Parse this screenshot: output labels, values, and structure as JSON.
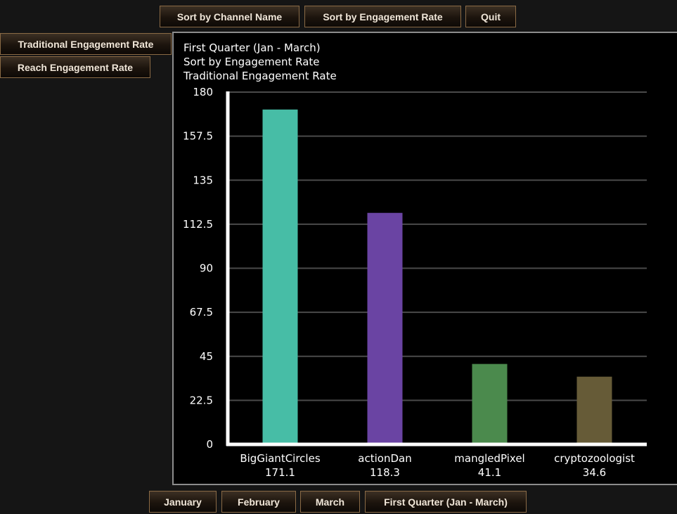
{
  "top_buttons": {
    "sort_name": "Sort by Channel Name",
    "sort_rate": "Sort by Engagement Rate",
    "quit": "Quit"
  },
  "side_buttons": {
    "traditional": "Traditional Engagement Rate",
    "reach": "Reach Engagement Rate"
  },
  "bottom_buttons": {
    "january": "January",
    "february": "February",
    "march": "March",
    "quarter": "First Quarter (Jan - March)"
  },
  "chart_data": {
    "type": "bar",
    "title_lines": [
      "First Quarter (Jan - March)",
      "Sort by Engagement Rate",
      "Traditional Engagement Rate"
    ],
    "categories": [
      "BigGiantCircles",
      "actionDan",
      "mangledPixel",
      "cryptozoologist"
    ],
    "values": [
      171.1,
      118.3,
      41.1,
      34.6
    ],
    "value_labels": [
      "171.1",
      "118.3",
      "41.1",
      "34.6"
    ],
    "colors": [
      "#47bda6",
      "#6a44a3",
      "#4b8a4d",
      "#665b37"
    ],
    "yticks": [
      "0",
      "22.5",
      "45",
      "67.5",
      "90",
      "112.5",
      "135",
      "157.5",
      "180"
    ],
    "ylim": [
      0,
      180
    ],
    "grid": true
  }
}
